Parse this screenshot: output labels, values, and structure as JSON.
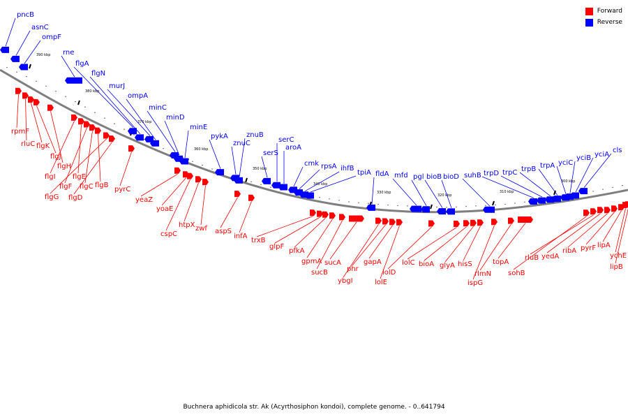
{
  "colors": {
    "forward": "#ff0000",
    "reverse": "#0000ff",
    "backbone": "#7f7f7f"
  },
  "legend": [
    {
      "label": "Forward",
      "strand": "forward"
    },
    {
      "label": "Reverse",
      "strand": "reverse"
    }
  ],
  "caption": "Buchnera aphidicola str. Ak (Acyrthosiphon kondoi), complete genome. - 0..641794",
  "scale_labels": [
    "390 kbp",
    "380 kbp",
    "370 kbp",
    "360 kbp",
    "350 kbp",
    "340 kbp",
    "330 kbp",
    "320 kbp",
    "310 kbp",
    "300 kbp"
  ],
  "reverse_genes": [
    "pncB",
    "asnC",
    "ompF",
    "rne",
    "flgA",
    "flgN",
    "murJ",
    "ompA",
    "minC",
    "minD",
    "minE",
    "pykA",
    "znuC",
    "znuB",
    "serS",
    "serC",
    "aroA",
    "cmk",
    "rpsA",
    "ihfB",
    "tpiA",
    "fldA",
    "mfd",
    "pgl",
    "bioB",
    "bioD",
    "suhB",
    "trpD",
    "trpC",
    "trpB",
    "trpA",
    "yciC",
    "yciB",
    "yciA",
    "cls"
  ],
  "forward_genes": [
    "rpmF",
    "rluC",
    "flgK",
    "flgJ",
    "flgH",
    "flgI",
    "flgE",
    "flgF",
    "flgC",
    "flgB",
    "flgG",
    "flgD",
    "pyrC",
    "yeaZ",
    "yoaE",
    "cspC",
    "htpX",
    "zwf",
    "aspS",
    "infA",
    "trxB",
    "glpF",
    "pfkA",
    "gpmA",
    "sucB",
    "sucA",
    "ybgI",
    "phr",
    "gapA",
    "lolE",
    "lolD",
    "lolC",
    "bioA",
    "glyA",
    "hisS",
    "ispG",
    "rlmN",
    "topA",
    "sohB",
    "rluB",
    "yedA",
    "ribA",
    "pyrF",
    "lipA",
    "ychE",
    "lipB"
  ]
}
